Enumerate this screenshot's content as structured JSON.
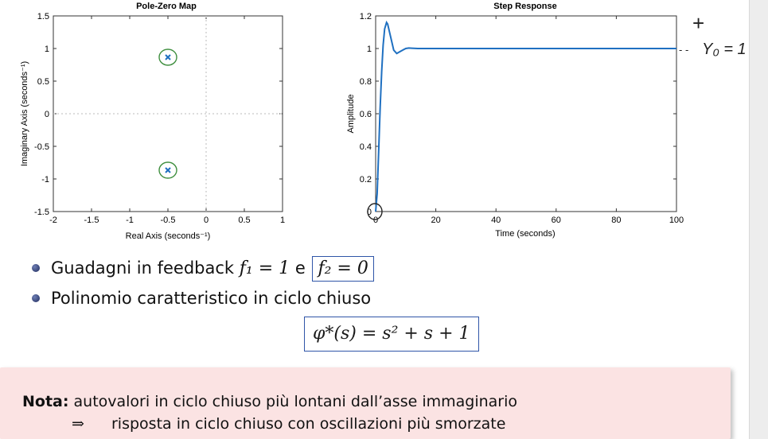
{
  "chart_data": [
    {
      "type": "scatter",
      "title": "Pole-Zero Map",
      "xlabel": "Real Axis (seconds⁻¹)",
      "ylabel": "Imaginary Axis (seconds⁻¹)",
      "xlim": [
        -2,
        1
      ],
      "ylim": [
        -1.5,
        1.5
      ],
      "xticks": [
        "-2",
        "-1.5",
        "-1",
        "-0.5",
        "0",
        "0.5",
        "1"
      ],
      "yticks": [
        "-1.5",
        "-1",
        "-0.5",
        "0",
        "0.5",
        "1",
        "1.5"
      ],
      "poles": [
        {
          "x": -0.5,
          "y": 0.866
        },
        {
          "x": -0.5,
          "y": -0.866
        }
      ],
      "grid": false
    },
    {
      "type": "line",
      "title": "Step Response",
      "xlabel": "Time (seconds)",
      "ylabel": "Amplitude",
      "xlim": [
        0,
        100
      ],
      "ylim": [
        0,
        1.2
      ],
      "xticks": [
        "0",
        "20",
        "40",
        "60",
        "80",
        "100"
      ],
      "yticks": [
        "0",
        "0.2",
        "0.4",
        "0.6",
        "0.8",
        "1",
        "1.2"
      ],
      "series": [
        {
          "x": [
            0,
            0.5,
            1,
            1.5,
            2,
            2.5,
            3,
            3.63,
            4,
            5,
            6,
            7,
            8,
            9,
            10,
            11,
            12,
            14,
            16,
            20,
            30,
            50,
            100
          ],
          "y": [
            0,
            0.11,
            0.37,
            0.64,
            0.86,
            1.02,
            1.12,
            1.16,
            1.15,
            1.07,
            0.99,
            0.97,
            0.98,
            0.99,
            1.0,
            1.003,
            1.002,
            1.0,
            1.0,
            1.0,
            1.0,
            1.0,
            1.0
          ]
        }
      ],
      "grid": false
    }
  ],
  "annotations": {
    "plus": "+",
    "handwritten_y0": "Y₀ = 1",
    "dash": "- -"
  },
  "bullets": [
    {
      "prefix": "Guadagni in feedback ",
      "math1": "f₁ = 1",
      "mid": " e ",
      "math2": "f₂ = 0"
    },
    {
      "text": "Polinomio caratteristico in ciclo chiuso"
    }
  ],
  "formula": "φ*(s) = s² + s + 1",
  "note": {
    "label": "Nota:",
    "line1": " autovalori in ciclo chiuso più lontani dall’asse immaginario",
    "arrow": "⇒",
    "line2": "risposta in ciclo chiuso con oscillazioni più smorzate"
  },
  "colors": {
    "line": "#1f70c1",
    "pen": "#3f8f3f",
    "box": "#2f55a8",
    "note_bg": "#fbe3e3"
  }
}
